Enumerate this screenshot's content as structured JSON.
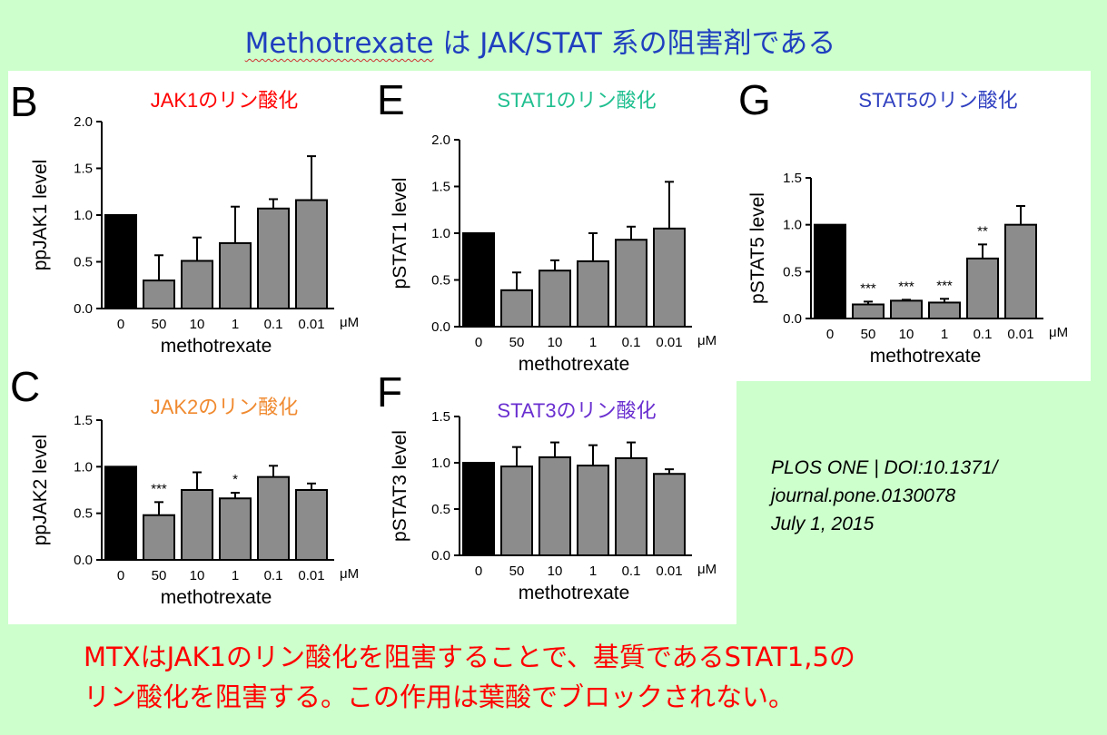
{
  "title_prefix": "Methotrexate",
  "title_rest": " は JAK/STAT 系の阻害剤である",
  "citation": [
    "PLOS ONE | DOI:10.1371/",
    "journal.pone.0130078",
    "July 1, 2015"
  ],
  "conclusion": [
    "MTXはJAK1のリン酸化を阻害することで、基質であるSTAT1,5の",
    "リン酸化を阻害する。この作用は葉酸でブロックされない。"
  ],
  "colors": {
    "background": "#ccffcc",
    "title": "#1f3fbf",
    "conclusion": "#ff0000",
    "bar_control": "#000000",
    "bar_treated": "#8c8c8c"
  },
  "chart_data": [
    {
      "id": "B",
      "panel_letter": "B",
      "type": "bar",
      "title": "JAK1のリン酸化",
      "title_color": "#ff0000",
      "ylabel": "ppJAK1 level",
      "xlabel": "methotrexate",
      "unit": "μM",
      "categories": [
        "0",
        "50",
        "10",
        "1",
        "0.1",
        "0.01"
      ],
      "values": [
        1.0,
        0.3,
        0.51,
        0.7,
        1.07,
        1.16
      ],
      "errors": [
        0,
        0.27,
        0.25,
        0.39,
        0.1,
        0.47
      ],
      "significance": [
        "",
        "",
        "",
        "",
        "",
        ""
      ],
      "ylim": [
        0,
        2.0
      ],
      "yticks": [
        "0.0",
        "0.5",
        "1.0",
        "1.5",
        "2.0"
      ]
    },
    {
      "id": "C",
      "panel_letter": "C",
      "type": "bar",
      "title": "JAK2のリン酸化",
      "title_color": "#f08a30",
      "ylabel": "ppJAK2 level",
      "xlabel": "methotrexate",
      "unit": "μM",
      "categories": [
        "0",
        "50",
        "10",
        "1",
        "0.1",
        "0.01"
      ],
      "values": [
        1.0,
        0.48,
        0.75,
        0.66,
        0.89,
        0.75
      ],
      "errors": [
        0,
        0.14,
        0.19,
        0.06,
        0.12,
        0.07
      ],
      "significance": [
        "",
        "***",
        "",
        "*",
        "",
        ""
      ],
      "ylim": [
        0,
        1.5
      ],
      "yticks": [
        "0.0",
        "0.5",
        "1.0",
        "1.5"
      ]
    },
    {
      "id": "E",
      "panel_letter": "E",
      "type": "bar",
      "title": "STAT1のリン酸化",
      "title_color": "#1fbf8f",
      "ylabel": "pSTAT1 level",
      "xlabel": "methotrexate",
      "unit": "μM",
      "categories": [
        "0",
        "50",
        "10",
        "1",
        "0.1",
        "0.01"
      ],
      "values": [
        1.0,
        0.39,
        0.6,
        0.7,
        0.93,
        1.05
      ],
      "errors": [
        0,
        0.19,
        0.11,
        0.3,
        0.14,
        0.5
      ],
      "significance": [
        "",
        "",
        "",
        "",
        "",
        ""
      ],
      "ylim": [
        0,
        2.0
      ],
      "yticks": [
        "0.0",
        "0.5",
        "1.0",
        "1.5",
        "2.0"
      ]
    },
    {
      "id": "F",
      "panel_letter": "F",
      "type": "bar",
      "title": "STAT3のリン酸化",
      "title_color": "#6a2fd0",
      "ylabel": "pSTAT3 level",
      "xlabel": "methotrexate",
      "unit": "μM",
      "categories": [
        "0",
        "50",
        "10",
        "1",
        "0.1",
        "0.01"
      ],
      "values": [
        1.0,
        0.96,
        1.06,
        0.97,
        1.05,
        0.88
      ],
      "errors": [
        0,
        0.21,
        0.16,
        0.22,
        0.17,
        0.05
      ],
      "significance": [
        "",
        "",
        "",
        "",
        "",
        ""
      ],
      "ylim": [
        0,
        1.5
      ],
      "yticks": [
        "0.0",
        "0.5",
        "1.0",
        "1.5"
      ]
    },
    {
      "id": "G",
      "panel_letter": "G",
      "type": "bar",
      "title": "STAT5のリン酸化",
      "title_color": "#3040c0",
      "ylabel": "pSTAT5 level",
      "xlabel": "methotrexate",
      "unit": "μM",
      "categories": [
        "0",
        "50",
        "10",
        "1",
        "0.1",
        "0.01"
      ],
      "values": [
        1.0,
        0.15,
        0.19,
        0.17,
        0.64,
        1.0
      ],
      "errors": [
        0,
        0.03,
        0.01,
        0.04,
        0.15,
        0.2
      ],
      "significance": [
        "",
        "***",
        "***",
        "***",
        "**",
        ""
      ],
      "ylim": [
        0,
        1.5
      ],
      "yticks": [
        "0.0",
        "0.5",
        "1.0",
        "1.5"
      ]
    }
  ]
}
